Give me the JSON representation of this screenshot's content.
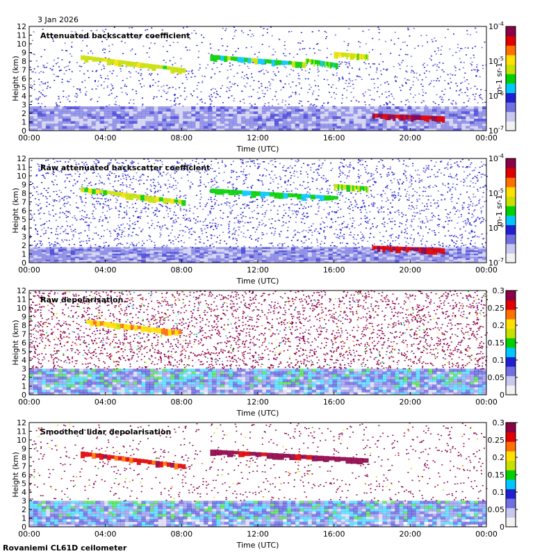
{
  "date_label": "3 Jan 2026",
  "footer_label": "Rovaniemi CL61D ceilometer",
  "colors": {
    "scale": [
      "#f2f2f2",
      "#c8c8f0",
      "#7070e0",
      "#2020d0",
      "#00c8ff",
      "#00d000",
      "#c8e000",
      "#ffe000",
      "#ff7000",
      "#e00000",
      "#8c0046"
    ]
  },
  "chart_data": [
    {
      "type": "heatmap",
      "title": "Attenuated backscatter coefficient",
      "xlabel": "Time (UTC)",
      "ylabel": "Height (km)",
      "x_ticks": [
        "00:00",
        "04:00",
        "08:00",
        "12:00",
        "16:00",
        "20:00",
        "00:00"
      ],
      "y_ticks": [
        "0",
        "1",
        "2",
        "3",
        "4",
        "5",
        "6",
        "7",
        "8",
        "9",
        "10",
        "11",
        "12"
      ],
      "ylim": [
        0,
        12
      ],
      "xlim_hours": [
        0,
        24
      ],
      "colorbar": {
        "scale": "log",
        "ticks": [
          "10-7",
          "10-6",
          "10-5",
          "10-4"
        ],
        "ticks_base": "10",
        "ticks_exp": [
          "-7",
          "-6",
          "-5",
          "-4"
        ],
        "unit": "m-1 sr-1",
        "range": [
          1e-07,
          0.0001
        ]
      },
      "features": [
        {
          "name": "cirrus",
          "start_hour": 2.7,
          "end_hour": 8.2,
          "base_km": 6.8,
          "top_km": 8.7,
          "level": 0.6
        },
        {
          "name": "cirrus",
          "start_hour": 9.5,
          "end_hour": 14.5,
          "base_km": 7.5,
          "top_km": 8.6,
          "level": 0.5
        },
        {
          "name": "cirrus",
          "start_hour": 14.5,
          "end_hour": 16.2,
          "base_km": 7.4,
          "top_km": 8.1,
          "level": 0.5
        },
        {
          "name": "cirrus",
          "start_hour": 16.0,
          "end_hour": 17.8,
          "base_km": 8.4,
          "top_km": 8.8,
          "level": 0.6
        },
        {
          "name": "low-cloud",
          "start_hour": 18.0,
          "end_hour": 21.8,
          "base_km": 1.3,
          "top_km": 1.7,
          "level": 0.9
        }
      ],
      "boundary_layer_top_km": 2.8,
      "noise_top_km": 12
    },
    {
      "type": "heatmap",
      "title": "Raw attenuated backscatter coefficient",
      "xlabel": "Time (UTC)",
      "ylabel": "Height (km)",
      "x_ticks": [
        "00:00",
        "04:00",
        "08:00",
        "12:00",
        "16:00",
        "20:00",
        "00:00"
      ],
      "y_ticks": [
        "0",
        "1",
        "2",
        "3",
        "4",
        "5",
        "6",
        "7",
        "8",
        "9",
        "10",
        "11",
        "12"
      ],
      "ylim": [
        0,
        12
      ],
      "xlim_hours": [
        0,
        24
      ],
      "colorbar": {
        "scale": "log",
        "ticks_base": "10",
        "ticks_exp": [
          "-7",
          "-6",
          "-5",
          "-4"
        ],
        "unit": "m-1 sr-1",
        "range": [
          1e-07,
          0.0001
        ]
      },
      "features": [
        {
          "name": "cirrus",
          "start_hour": 2.7,
          "end_hour": 8.2,
          "base_km": 6.8,
          "top_km": 8.7,
          "level": 0.6
        },
        {
          "name": "cirrus",
          "start_hour": 9.5,
          "end_hour": 16.2,
          "base_km": 7.3,
          "top_km": 8.4,
          "level": 0.45
        },
        {
          "name": "cirrus",
          "start_hour": 16.0,
          "end_hour": 17.8,
          "base_km": 8.4,
          "top_km": 8.8,
          "level": 0.55
        },
        {
          "name": "low-cloud",
          "start_hour": 18.0,
          "end_hour": 21.8,
          "base_km": 1.3,
          "top_km": 1.7,
          "level": 0.9
        }
      ],
      "boundary_layer_top_km": 1.8,
      "noise_top_km": 12
    },
    {
      "type": "heatmap",
      "title": "Raw depolarisation",
      "xlabel": "Time (UTC)",
      "ylabel": "Height (km)",
      "x_ticks": [
        "00:00",
        "04:00",
        "08:00",
        "12:00",
        "16:00",
        "20:00",
        "00:00"
      ],
      "y_ticks": [
        "0",
        "1",
        "2",
        "3",
        "4",
        "5",
        "6",
        "7",
        "8",
        "9",
        "10",
        "11",
        "12"
      ],
      "ylim": [
        0,
        12
      ],
      "xlim_hours": [
        0,
        24
      ],
      "colorbar": {
        "scale": "linear",
        "ticks": [
          "0",
          "0.05",
          "0.1",
          "0.15",
          "0.2",
          "0.25",
          "0.3"
        ],
        "range": [
          0,
          0.3
        ]
      },
      "features": [
        {
          "name": "cirrus",
          "start_hour": 3.0,
          "end_hour": 8.0,
          "base_km": 7.0,
          "top_km": 8.6,
          "level": 0.7
        }
      ],
      "boundary_layer_top_km": 3.0,
      "noise_top_km": 12
    },
    {
      "type": "heatmap",
      "title": "Smoothed lidar depolarisation",
      "xlabel": "Time (UTC)",
      "ylabel": "Height (km)",
      "x_ticks": [
        "00:00",
        "04:00",
        "08:00",
        "12:00",
        "16:00",
        "20:00",
        "00:00"
      ],
      "y_ticks": [
        "0",
        "1",
        "2",
        "3",
        "4",
        "5",
        "6",
        "7",
        "8",
        "9",
        "10",
        "11",
        "12"
      ],
      "ylim": [
        0,
        12
      ],
      "xlim_hours": [
        0,
        24
      ],
      "colorbar": {
        "scale": "linear",
        "ticks": [
          "0",
          "0.05",
          "0.1",
          "0.15",
          "0.2",
          "0.25",
          "0.3"
        ],
        "range": [
          0,
          0.3
        ]
      },
      "features": [
        {
          "name": "cirrus",
          "start_hour": 2.7,
          "end_hour": 8.2,
          "base_km": 6.8,
          "top_km": 8.7,
          "level": 0.85
        },
        {
          "name": "cirrus",
          "start_hour": 9.5,
          "end_hour": 17.8,
          "base_km": 7.5,
          "top_km": 8.8,
          "level": 0.95
        }
      ],
      "boundary_layer_top_km": 3.0,
      "noise_top_km": 12
    }
  ]
}
